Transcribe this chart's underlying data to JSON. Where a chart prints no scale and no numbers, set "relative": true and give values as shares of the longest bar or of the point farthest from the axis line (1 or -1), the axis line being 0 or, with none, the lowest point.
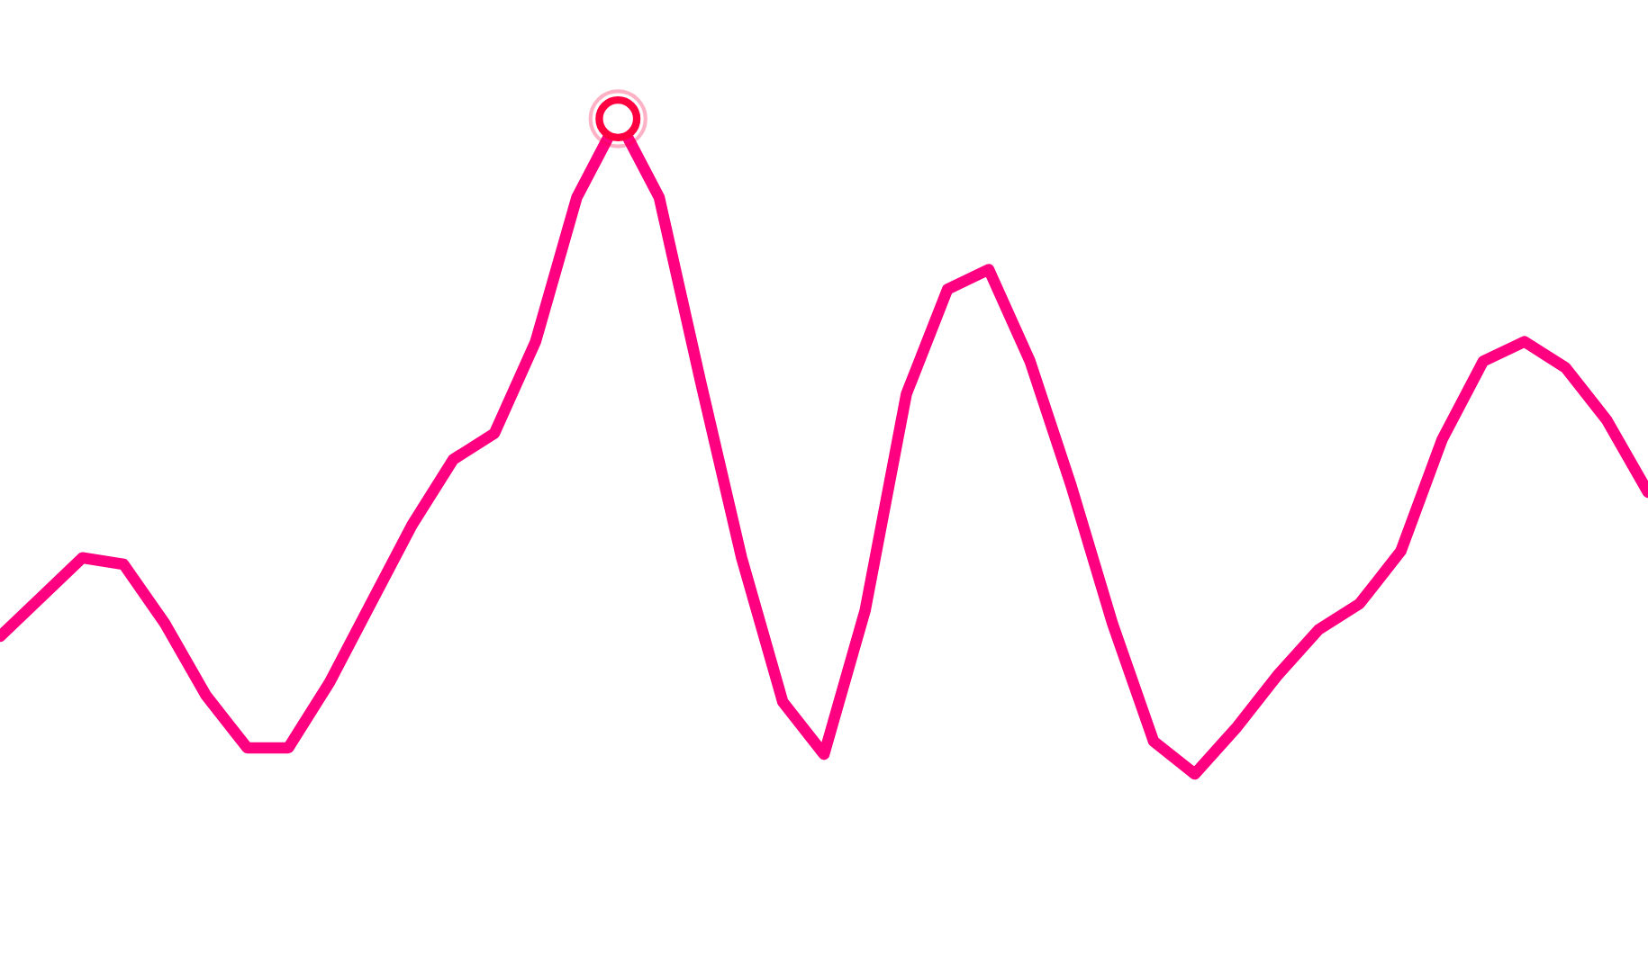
{
  "chart_data": {
    "type": "line",
    "relative": true,
    "legend": false,
    "line_style": "solid",
    "marker": "none",
    "categories": [
      null,
      null,
      null,
      null,
      null,
      null,
      null,
      null,
      null,
      null,
      null,
      null,
      null,
      null,
      null,
      null,
      null,
      null,
      null,
      null,
      null,
      null,
      null,
      null,
      null,
      null,
      null,
      null,
      null,
      null,
      null,
      null,
      null,
      null,
      null,
      null,
      null,
      null,
      null,
      null,
      null
    ],
    "series": [
      {
        "color": "#ff0080",
        "values": [
          0.21,
          0.27,
          0.33,
          0.32,
          0.23,
          0.12,
          0.04,
          0.04,
          0.14,
          0.26,
          0.38,
          0.48,
          0.52,
          0.66,
          0.88,
          1.0,
          0.88,
          0.6,
          0.33,
          0.11,
          0.03,
          0.25,
          0.58,
          0.74,
          0.77,
          0.63,
          0.44,
          0.23,
          0.05,
          0,
          0.07,
          0.15,
          0.22,
          0.26,
          0.34,
          0.51,
          0.63,
          0.66,
          0.62,
          0.54,
          0.43
        ]
      }
    ]
  }
}
